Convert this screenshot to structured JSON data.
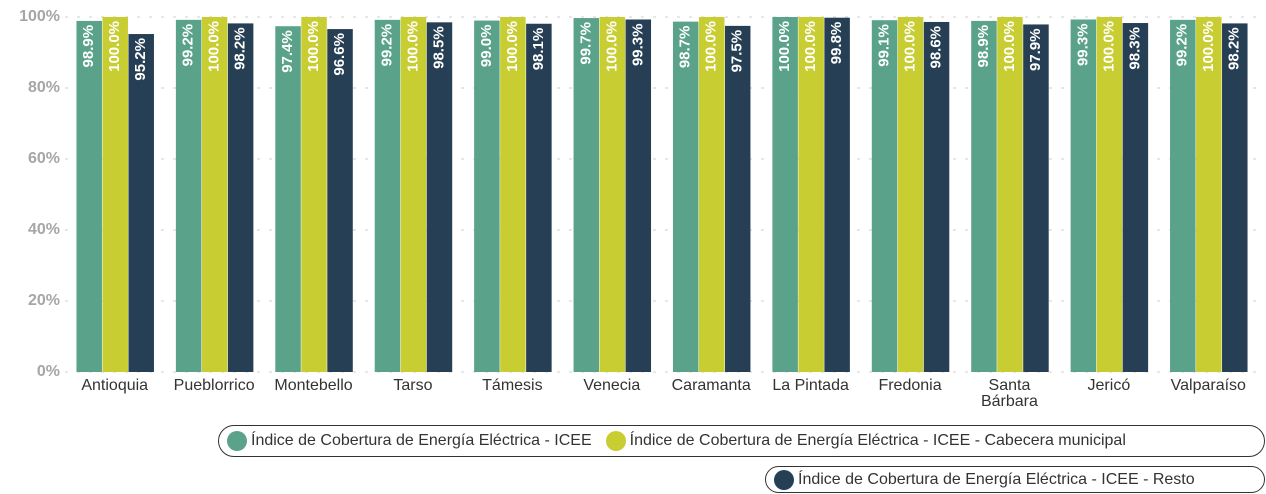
{
  "chart_data": {
    "type": "bar",
    "categories": [
      "Antioquia",
      "Pueblorrico",
      "Montebello",
      "Tarso",
      "Támesis",
      "Venecia",
      "Caramanta",
      "La Pintada",
      "Fredonia",
      "Santa Bárbara",
      "Jericó",
      "Valparaíso"
    ],
    "series": [
      {
        "name": "Índice de Cobertura de Energía Eléctrica - ICEE",
        "color": "#5aa38a",
        "values": [
          98.9,
          99.2,
          97.4,
          99.2,
          99.0,
          99.7,
          98.7,
          100.0,
          99.1,
          98.9,
          99.3,
          99.2
        ],
        "value_labels": [
          "98.9%",
          "99.2%",
          "97.4%",
          "99.2%",
          "99.0%",
          "99.7%",
          "98.7%",
          "100.0%",
          "99.1%",
          "98.9%",
          "99.3%",
          "99.2%"
        ]
      },
      {
        "name": "Índice de Cobertura de Energía Eléctrica - ICEE - Cabecera municipal",
        "color": "#c8cd32",
        "values": [
          100.0,
          100.0,
          100.0,
          100.0,
          100.0,
          100.0,
          100.0,
          100.0,
          100.0,
          100.0,
          100.0,
          100.0
        ],
        "value_labels": [
          "100.0%",
          "100.0%",
          "100.0%",
          "100.0%",
          "100.0%",
          "100.0%",
          "100.0%",
          "100.0%",
          "100.0%",
          "100.0%",
          "100.0%",
          "100.0%"
        ]
      },
      {
        "name": "Índice de Cobertura de Energía Eléctrica - ICEE - Resto",
        "color": "#263f55",
        "values": [
          95.2,
          98.2,
          96.6,
          98.5,
          98.1,
          99.3,
          97.5,
          99.8,
          98.6,
          97.9,
          98.3,
          98.2
        ],
        "value_labels": [
          "95.2%",
          "98.2%",
          "96.6%",
          "98.5%",
          "98.1%",
          "99.3%",
          "97.5%",
          "99.8%",
          "98.6%",
          "97.9%",
          "98.3%",
          "98.2%"
        ]
      }
    ],
    "ylim": [
      0,
      100
    ],
    "yticks": [
      {
        "value": 0,
        "label": "0%"
      },
      {
        "value": 20,
        "label": "20%"
      },
      {
        "value": 40,
        "label": "40%"
      },
      {
        "value": 60,
        "label": "60%"
      },
      {
        "value": 80,
        "label": "80%"
      },
      {
        "value": 100,
        "label": "100%"
      }
    ],
    "grid": true,
    "legend": "bottom"
  }
}
